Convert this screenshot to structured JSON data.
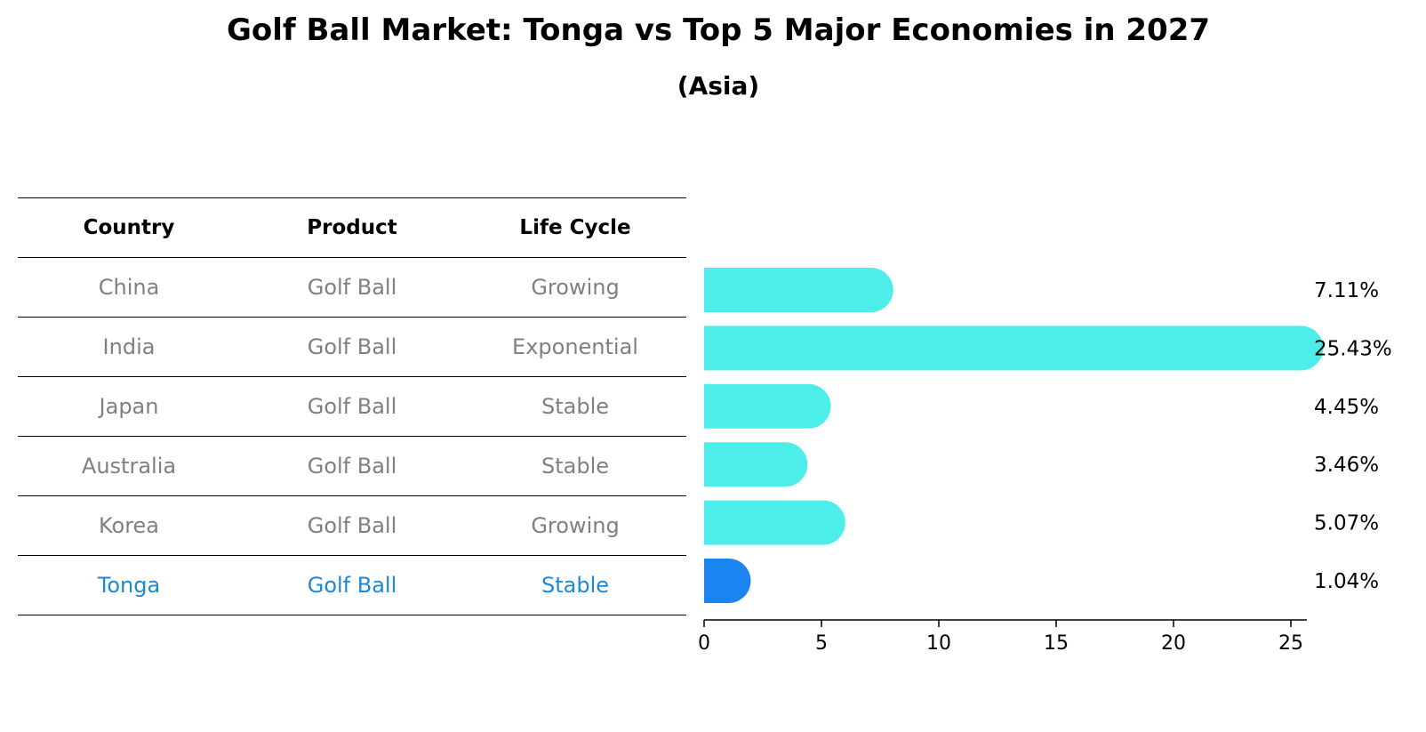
{
  "title": "Golf Ball Market: Tonga vs Top 5 Major Economies in 2027",
  "subtitle": "(Asia)",
  "table": {
    "headers": [
      "Country",
      "Product",
      "Life Cycle"
    ],
    "rows": [
      [
        "China",
        "Golf Ball",
        "Growing"
      ],
      [
        "India",
        "Golf Ball",
        "Exponential"
      ],
      [
        "Japan",
        "Golf Ball",
        "Stable"
      ],
      [
        "Australia",
        "Golf Ball",
        "Stable"
      ],
      [
        "Korea",
        "Golf Ball",
        "Growing"
      ],
      [
        "Tonga",
        "Golf Ball",
        "Stable"
      ]
    ],
    "highlight_row": "Tonga"
  },
  "chart_data": {
    "type": "bar",
    "orientation": "horizontal",
    "categories": [
      "China",
      "India",
      "Japan",
      "Australia",
      "Korea",
      "Tonga"
    ],
    "values": [
      7.11,
      25.43,
      4.45,
      3.46,
      5.07,
      1.04
    ],
    "value_labels": [
      "7.11%",
      "25.43%",
      "4.45%",
      "3.46%",
      "5.07%",
      "1.04%"
    ],
    "xlim": [
      0,
      26.7
    ],
    "xticks": [
      0,
      5,
      10,
      15,
      20,
      25
    ],
    "colors": {
      "default": "#4dede9",
      "highlight": "#1a84f0",
      "highlight_text": "#1e88d2",
      "muted_text": "#808080"
    }
  }
}
